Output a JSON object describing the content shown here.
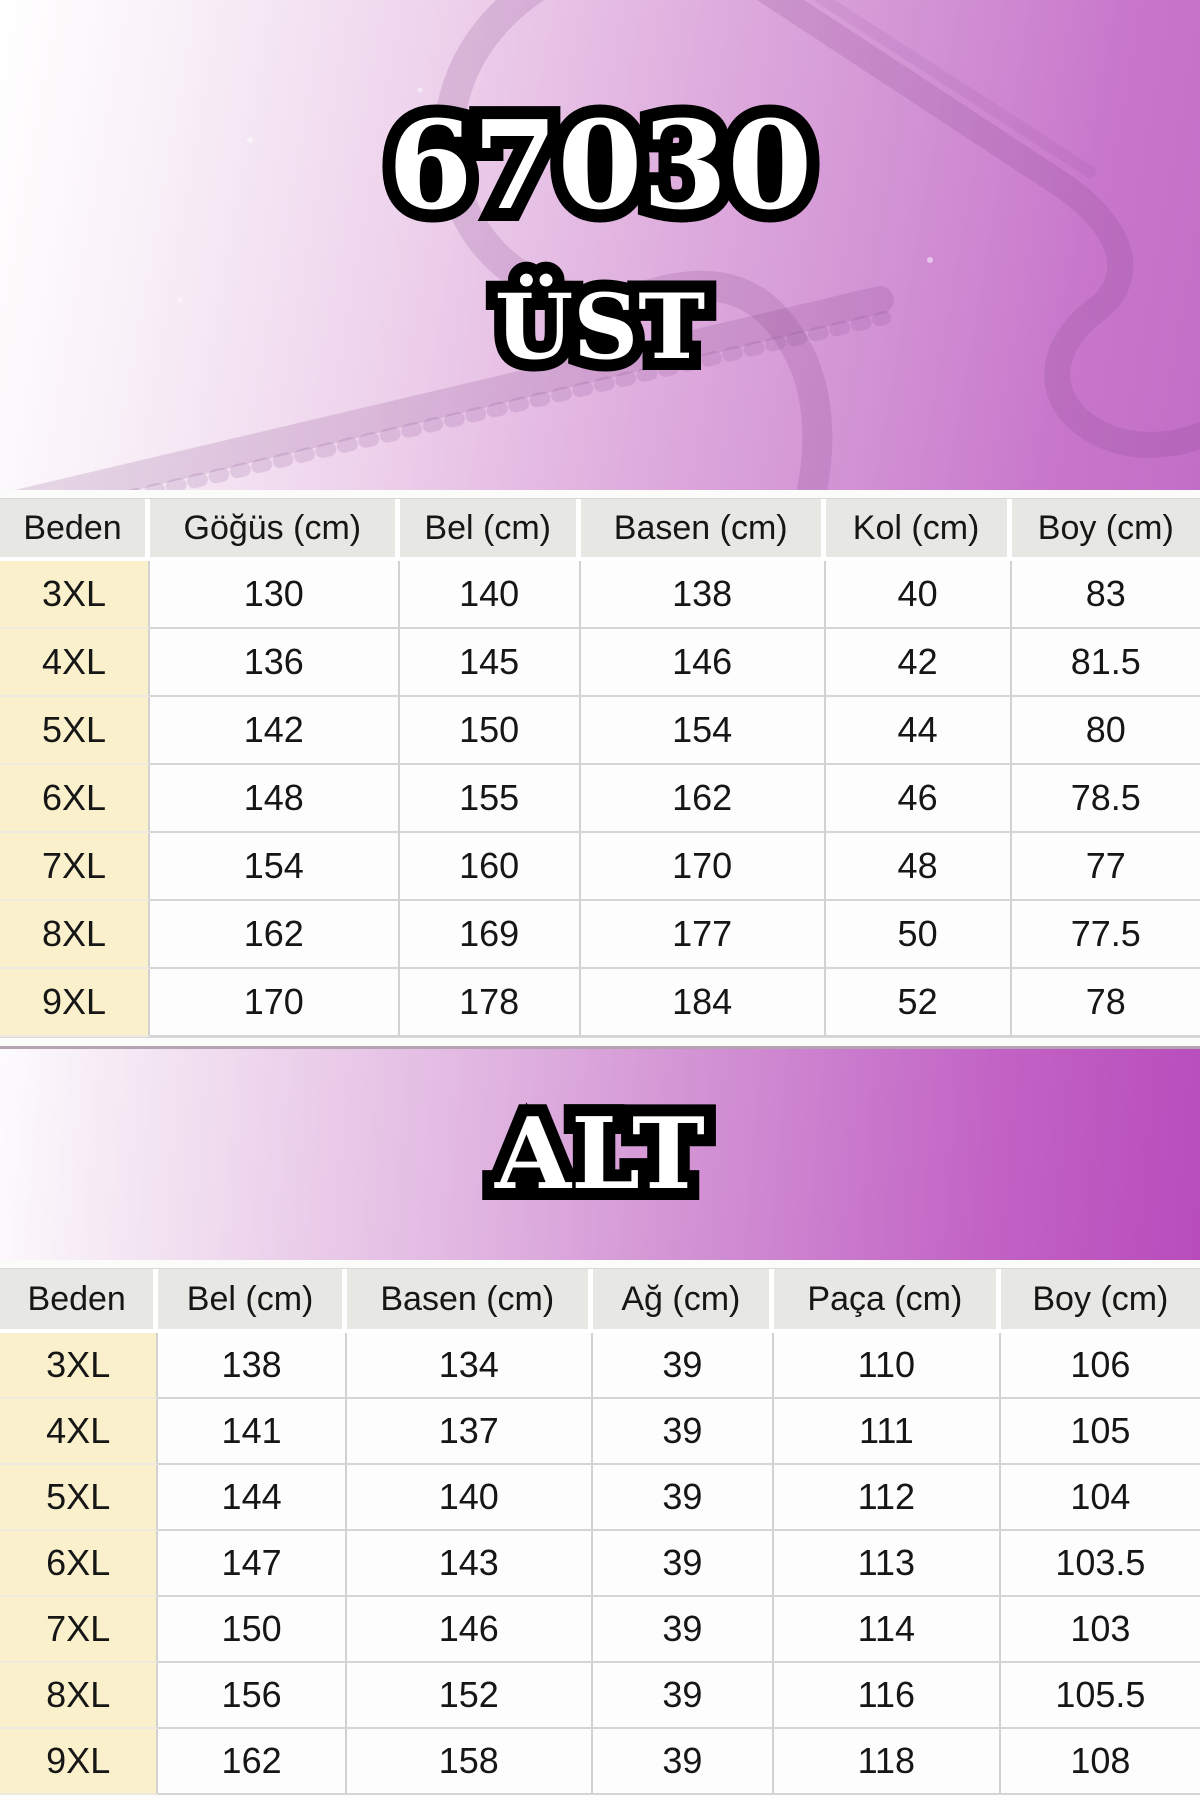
{
  "header": {
    "product_code": "67030"
  },
  "sections": {
    "upper_label": "ÜST",
    "lower_label": "ALT"
  },
  "upper_table": {
    "headers": [
      "Beden",
      "Göğüs (cm)",
      "Bel (cm)",
      "Basen (cm)",
      "Kol (cm)",
      "Boy (cm)"
    ],
    "rows": [
      [
        "3XL",
        "130",
        "140",
        "138",
        "40",
        "83"
      ],
      [
        "4XL",
        "136",
        "145",
        "146",
        "42",
        "81.5"
      ],
      [
        "5XL",
        "142",
        "150",
        "154",
        "44",
        "80"
      ],
      [
        "6XL",
        "148",
        "155",
        "162",
        "46",
        "78.5"
      ],
      [
        "7XL",
        "154",
        "160",
        "170",
        "48",
        "77"
      ],
      [
        "8XL",
        "162",
        "169",
        "177",
        "50",
        "77.5"
      ],
      [
        "9XL",
        "170",
        "178",
        "184",
        "52",
        "78"
      ]
    ]
  },
  "lower_table": {
    "headers": [
      "Beden",
      "Bel (cm)",
      "Basen (cm)",
      "Ağ (cm)",
      "Paça (cm)",
      "Boy (cm)"
    ],
    "rows": [
      [
        "3XL",
        "138",
        "134",
        "39",
        "110",
        "106"
      ],
      [
        "4XL",
        "141",
        "137",
        "39",
        "111",
        "105"
      ],
      [
        "5XL",
        "144",
        "140",
        "39",
        "112",
        "104"
      ],
      [
        "6XL",
        "147",
        "143",
        "39",
        "113",
        "103.5"
      ],
      [
        "7XL",
        "150",
        "146",
        "39",
        "114",
        "103"
      ],
      [
        "8XL",
        "156",
        "152",
        "39",
        "116",
        "105.5"
      ],
      [
        "9XL",
        "162",
        "158",
        "39",
        "118",
        "108"
      ]
    ]
  },
  "colors": {
    "accent_purple": "#c26ec7",
    "deep_magenta": "#b84cbc",
    "header_cell_bg": "#e7e7e3",
    "size_column_bg": "#faf0cc",
    "data_cell_bg": "#fdfdfd",
    "outline_text_fill": "#ffffff",
    "outline_text_stroke": "#000000"
  }
}
